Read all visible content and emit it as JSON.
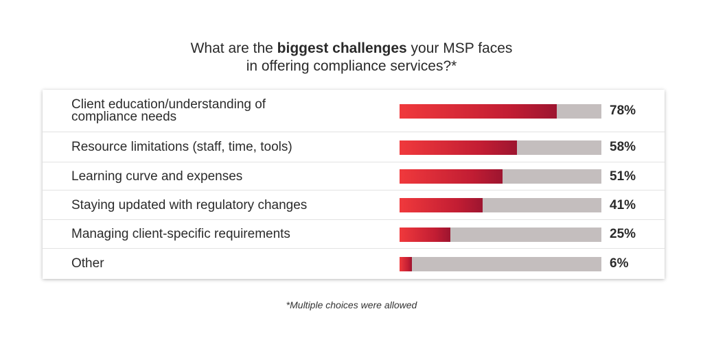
{
  "title": {
    "line1_pre": "What are the ",
    "line1_bold": "biggest challenges",
    "line1_post": " your MSP faces",
    "line2": "in offering compliance services?*"
  },
  "footnote": "*Multiple choices were allowed",
  "colors": {
    "bar_fill_start": "#f0393c",
    "bar_fill_end": "#9d1530",
    "bar_track": "#c4bebe"
  },
  "chart_data": {
    "type": "bar",
    "orientation": "horizontal",
    "title": "What are the biggest challenges your MSP faces in offering compliance services?*",
    "categories": [
      "Client education/understanding of compliance needs",
      "Resource limitations (staff, time, tools)",
      "Learning curve and expenses",
      "Staying updated with regulatory changes",
      "Managing client-specific requirements",
      "Other"
    ],
    "values": [
      78,
      58,
      51,
      41,
      25,
      6
    ],
    "value_labels": [
      "78%",
      "58%",
      "51%",
      "41%",
      "25%",
      "6%"
    ],
    "xlim": [
      0,
      100
    ],
    "grid": false,
    "legend": "none",
    "note": "*Multiple choices were allowed"
  }
}
